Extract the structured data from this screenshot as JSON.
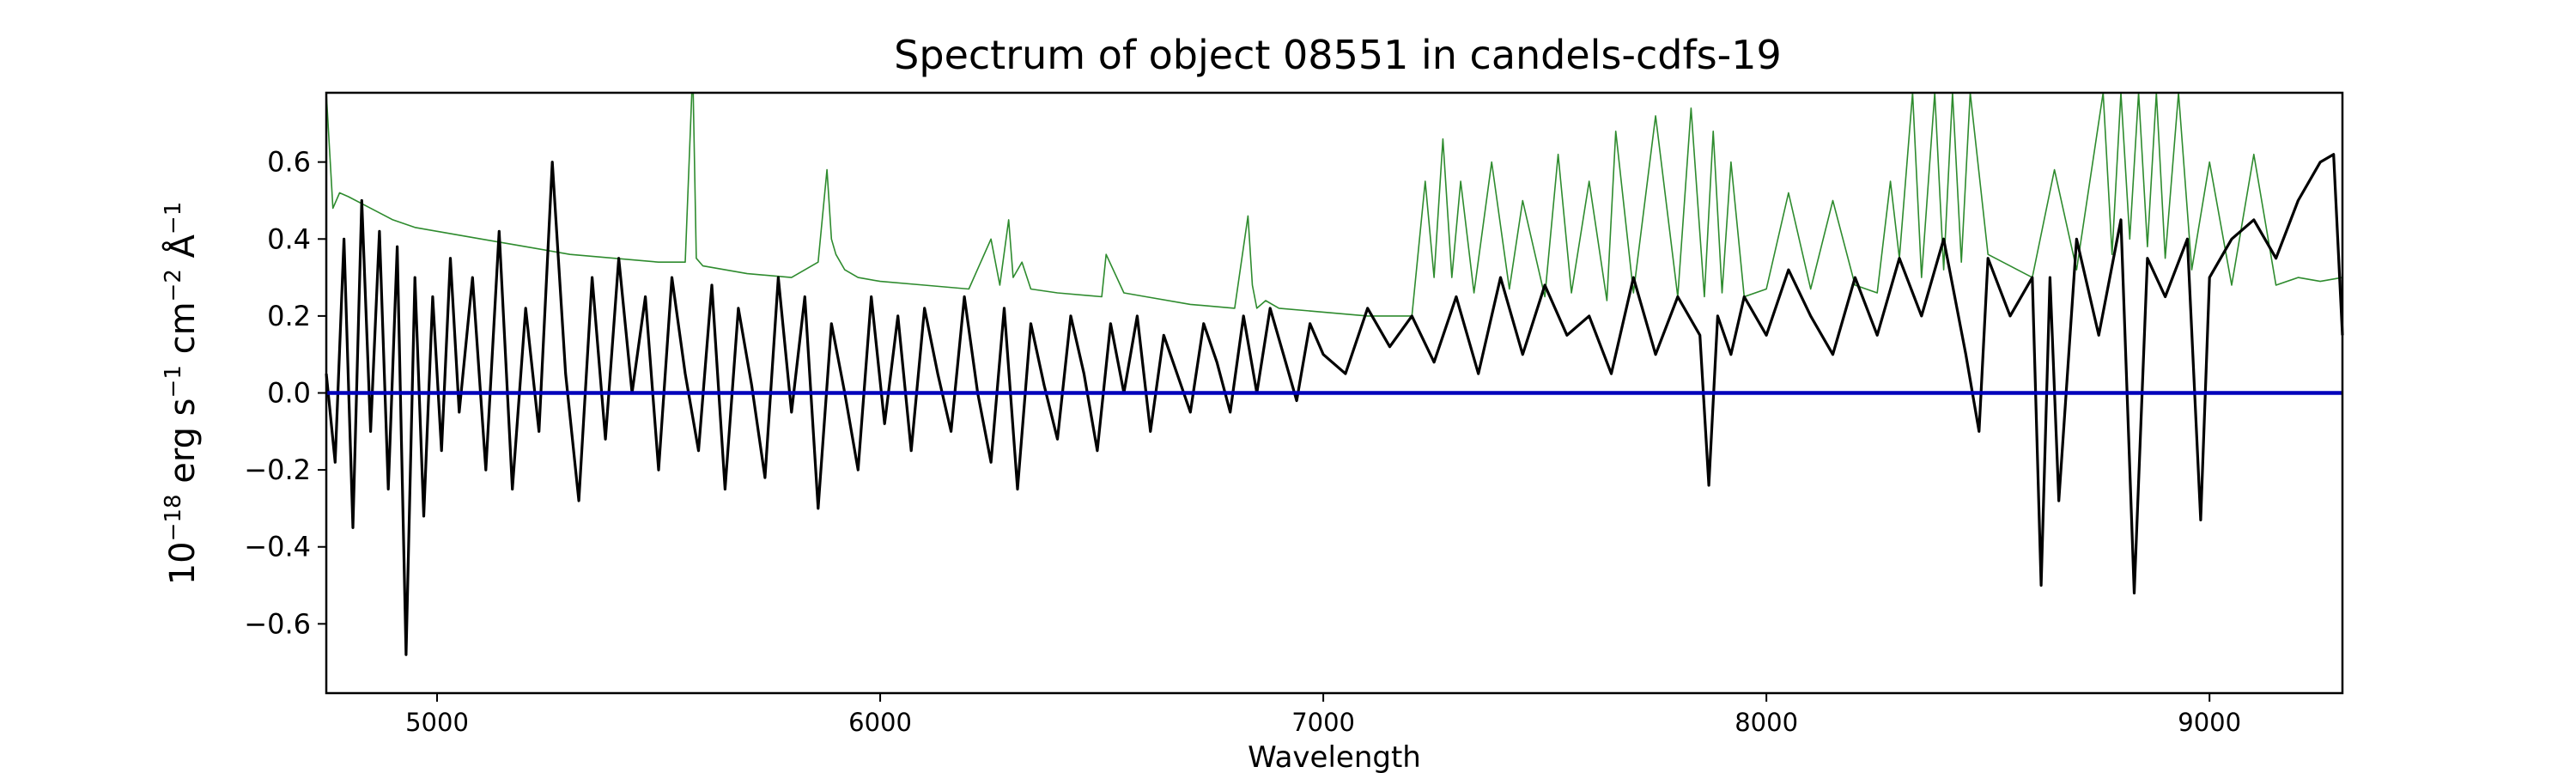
{
  "chart_data": {
    "type": "line",
    "title": "Spectrum of object 08551 in candels-cdfs-19",
    "xlabel": "Wavelength",
    "ylabel_parts": {
      "base": "10",
      "base_exp": "−18",
      "erg": " erg s",
      "s_exp": "−1",
      "cm": " cm",
      "cm_exp": "−2",
      "ang": " Å",
      "ang_exp": "−1"
    },
    "xlim": [
      4750,
      9300
    ],
    "ylim": [
      -0.78,
      0.78
    ],
    "xticks": [
      5000,
      6000,
      7000,
      8000,
      9000
    ],
    "xtick_labels": [
      "5000",
      "6000",
      "7000",
      "8000",
      "9000"
    ],
    "yticks": [
      -0.6,
      -0.4,
      -0.2,
      0.0,
      0.2,
      0.4,
      0.6
    ],
    "ytick_labels": [
      "−0.6",
      "−0.4",
      "−0.2",
      "0.0",
      "0.2",
      "0.4",
      "0.6"
    ],
    "grid": false,
    "series": [
      {
        "role": "noise",
        "color": "#2e8b2e",
        "x": [
          4750,
          4765,
          4780,
          4800,
          4850,
          4900,
          4950,
          5000,
          5100,
          5200,
          5300,
          5400,
          5500,
          5560,
          5575,
          5578,
          5585,
          5600,
          5700,
          5800,
          5860,
          5880,
          5890,
          5900,
          5920,
          5950,
          6000,
          6100,
          6200,
          6250,
          6270,
          6290,
          6300,
          6320,
          6340,
          6400,
          6500,
          6510,
          6550,
          6600,
          6700,
          6800,
          6830,
          6840,
          6850,
          6870,
          6900,
          7000,
          7100,
          7200,
          7230,
          7250,
          7270,
          7290,
          7310,
          7340,
          7380,
          7420,
          7450,
          7500,
          7530,
          7560,
          7600,
          7640,
          7660,
          7700,
          7750,
          7800,
          7830,
          7860,
          7880,
          7900,
          7920,
          7950,
          8000,
          8050,
          8100,
          8150,
          8200,
          8250,
          8280,
          8300,
          8330,
          8350,
          8380,
          8400,
          8420,
          8440,
          8460,
          8500,
          8600,
          8650,
          8700,
          8760,
          8780,
          8800,
          8820,
          8840,
          8860,
          8880,
          8900,
          8930,
          8960,
          9000,
          9050,
          9100,
          9150,
          9200,
          9250,
          9300
        ],
        "y": [
          0.78,
          0.48,
          0.52,
          0.51,
          0.48,
          0.45,
          0.43,
          0.42,
          0.4,
          0.38,
          0.36,
          0.35,
          0.34,
          0.34,
          0.78,
          0.78,
          0.35,
          0.33,
          0.31,
          0.3,
          0.34,
          0.58,
          0.4,
          0.36,
          0.32,
          0.3,
          0.29,
          0.28,
          0.27,
          0.4,
          0.28,
          0.45,
          0.3,
          0.34,
          0.27,
          0.26,
          0.25,
          0.36,
          0.26,
          0.25,
          0.23,
          0.22,
          0.46,
          0.28,
          0.22,
          0.24,
          0.22,
          0.21,
          0.2,
          0.2,
          0.55,
          0.3,
          0.66,
          0.3,
          0.55,
          0.26,
          0.6,
          0.27,
          0.5,
          0.25,
          0.62,
          0.26,
          0.55,
          0.24,
          0.68,
          0.26,
          0.72,
          0.25,
          0.74,
          0.25,
          0.68,
          0.26,
          0.6,
          0.25,
          0.27,
          0.52,
          0.27,
          0.5,
          0.28,
          0.26,
          0.55,
          0.35,
          0.78,
          0.3,
          0.78,
          0.32,
          0.78,
          0.34,
          0.78,
          0.36,
          0.3,
          0.58,
          0.32,
          0.78,
          0.36,
          0.78,
          0.4,
          0.78,
          0.38,
          0.78,
          0.35,
          0.78,
          0.32,
          0.6,
          0.28,
          0.62,
          0.28,
          0.3,
          0.29,
          0.3
        ]
      },
      {
        "role": "spectrum",
        "color": "#000000",
        "x": [
          4750,
          4770,
          4790,
          4810,
          4830,
          4850,
          4870,
          4890,
          4910,
          4930,
          4950,
          4970,
          4990,
          5010,
          5030,
          5050,
          5080,
          5110,
          5140,
          5170,
          5200,
          5230,
          5260,
          5290,
          5320,
          5350,
          5380,
          5410,
          5440,
          5470,
          5500,
          5530,
          5560,
          5590,
          5620,
          5650,
          5680,
          5710,
          5740,
          5770,
          5800,
          5830,
          5860,
          5890,
          5920,
          5950,
          5980,
          6010,
          6040,
          6070,
          6100,
          6130,
          6160,
          6190,
          6220,
          6250,
          6280,
          6310,
          6340,
          6370,
          6400,
          6430,
          6460,
          6490,
          6520,
          6550,
          6580,
          6610,
          6640,
          6670,
          6700,
          6730,
          6760,
          6790,
          6820,
          6850,
          6880,
          6910,
          6940,
          6970,
          7000,
          7050,
          7100,
          7150,
          7200,
          7250,
          7300,
          7350,
          7400,
          7450,
          7500,
          7550,
          7600,
          7650,
          7700,
          7750,
          7800,
          7850,
          7870,
          7890,
          7920,
          7950,
          8000,
          8050,
          8100,
          8150,
          8200,
          8250,
          8300,
          8350,
          8400,
          8450,
          8480,
          8500,
          8550,
          8600,
          8620,
          8640,
          8660,
          8700,
          8750,
          8800,
          8830,
          8860,
          8900,
          8950,
          8980,
          9000,
          9050,
          9100,
          9150,
          9200,
          9250,
          9280,
          9300
        ],
        "y": [
          0.05,
          -0.18,
          0.4,
          -0.35,
          0.5,
          -0.1,
          0.42,
          -0.25,
          0.38,
          -0.68,
          0.3,
          -0.32,
          0.25,
          -0.15,
          0.35,
          -0.05,
          0.3,
          -0.2,
          0.42,
          -0.25,
          0.22,
          -0.1,
          0.6,
          0.05,
          -0.28,
          0.3,
          -0.12,
          0.35,
          0.0,
          0.25,
          -0.2,
          0.3,
          0.05,
          -0.15,
          0.28,
          -0.25,
          0.22,
          0.02,
          -0.22,
          0.3,
          -0.05,
          0.25,
          -0.3,
          0.18,
          0.0,
          -0.2,
          0.25,
          -0.08,
          0.2,
          -0.15,
          0.22,
          0.05,
          -0.1,
          0.25,
          0.0,
          -0.18,
          0.22,
          -0.25,
          0.18,
          0.02,
          -0.12,
          0.2,
          0.05,
          -0.15,
          0.18,
          0.0,
          0.2,
          -0.1,
          0.15,
          0.05,
          -0.05,
          0.18,
          0.08,
          -0.05,
          0.2,
          0.0,
          0.22,
          0.1,
          -0.02,
          0.18,
          0.1,
          0.05,
          0.22,
          0.12,
          0.2,
          0.08,
          0.25,
          0.05,
          0.3,
          0.1,
          0.28,
          0.15,
          0.2,
          0.05,
          0.3,
          0.1,
          0.25,
          0.15,
          -0.24,
          0.2,
          0.1,
          0.25,
          0.15,
          0.32,
          0.2,
          0.1,
          0.3,
          0.15,
          0.35,
          0.2,
          0.4,
          0.1,
          -0.1,
          0.35,
          0.2,
          0.3,
          -0.5,
          0.3,
          -0.28,
          0.4,
          0.15,
          0.45,
          -0.52,
          0.35,
          0.25,
          0.4,
          -0.33,
          0.3,
          0.4,
          0.45,
          0.35,
          0.5,
          0.6,
          0.62,
          0.15
        ]
      },
      {
        "role": "zero",
        "color": "#0000bb",
        "x": [
          4750,
          9300
        ],
        "y": [
          0.0,
          0.0
        ]
      }
    ]
  }
}
